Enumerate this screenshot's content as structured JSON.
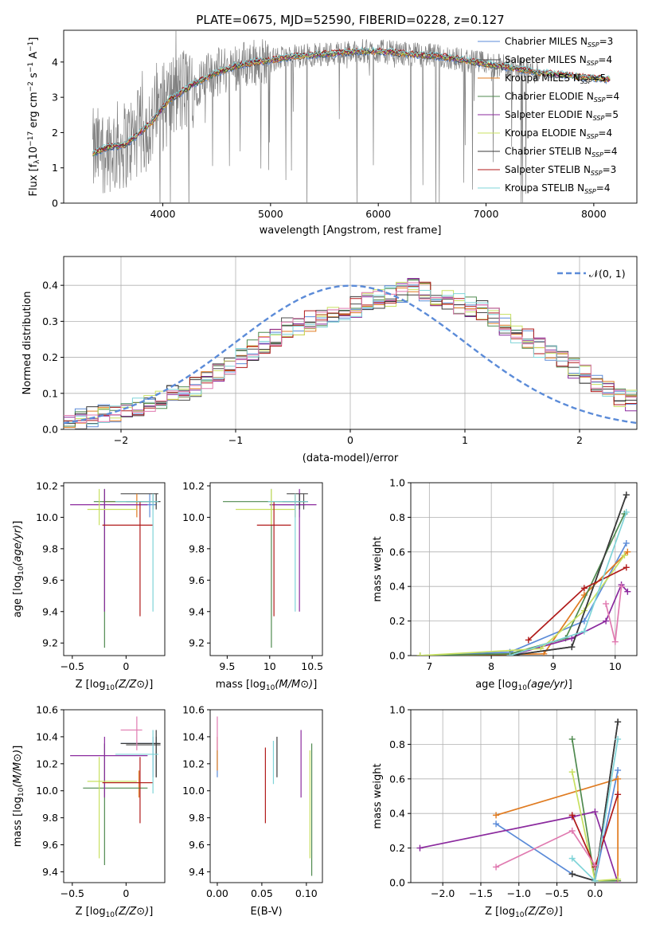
{
  "title": "PLATE=0675, MJD=52590, FIBERID=0228, z=0.127",
  "colors": {
    "Chabrier MILES": "#5b8bd8",
    "Salpeter MILES": "#4c4c4c",
    "Kroupa MILES": "#e07b20",
    "Chabrier ELODIE": "#4f8a4f",
    "Salpeter ELODIE": "#8b2a9e",
    "Kroupa ELODIE": "#c8e060",
    "Chabrier STELIB": "#3a3a3a",
    "Salpeter STELIB": "#b01a1a",
    "Kroupa STELIB": "#7fd4d8",
    "extra": "#e07ab0",
    "data": "#808080",
    "normal": "#5b8bd8"
  },
  "chart_data": [
    {
      "id": "spectrum",
      "type": "line",
      "xlabel": "wavelength [Angstrom, rest frame]",
      "ylabel": "Flux [f",
      "xlim": [
        3080,
        8400
      ],
      "ylim": [
        0,
        4.9
      ],
      "xticks": [
        4000,
        5000,
        6000,
        7000,
        8000
      ],
      "yticks": [
        0,
        1,
        2,
        3,
        4
      ],
      "legend": [
        {
          "name": "Chabrier MILES",
          "sub": "SSP",
          "n": "=3"
        },
        {
          "name": "Salpeter MILES",
          "sub": "SSP",
          "n": "=4"
        },
        {
          "name": "Kroupa MILES",
          "sub": "SSP",
          "n": "=5"
        },
        {
          "name": "Chabrier ELODIE",
          "sub": "SSP",
          "n": "=4"
        },
        {
          "name": "Salpeter ELODIE",
          "sub": "SSP",
          "n": "=5"
        },
        {
          "name": "Kroupa ELODIE",
          "sub": "SSP",
          "n": "=4"
        },
        {
          "name": "Chabrier STELIB",
          "sub": "SSP",
          "n": "=4"
        },
        {
          "name": "Salpeter STELIB",
          "sub": "SSP",
          "n": "=3"
        },
        {
          "name": "Kroupa STELIB",
          "sub": "SSP",
          "n": "=4"
        }
      ],
      "continuum": {
        "x": [
          3350,
          3500,
          3650,
          3750,
          3900,
          4050,
          4300,
          4500,
          4700,
          4850,
          5000,
          5200,
          5400,
          5600,
          5800,
          6000,
          6200,
          6400,
          6600,
          6800,
          7000,
          7200,
          7500
        ],
        "y": [
          1.4,
          1.6,
          1.65,
          1.9,
          2.3,
          2.9,
          3.4,
          3.7,
          3.9,
          4.0,
          4.05,
          4.15,
          4.2,
          4.25,
          4.3,
          4.3,
          4.25,
          4.2,
          4.15,
          4.05,
          3.95,
          3.85,
          3.7
        ]
      },
      "model_end": {
        "x": [
          7500,
          8150
        ],
        "y": [
          3.7,
          3.5
        ]
      }
    },
    {
      "id": "residuals",
      "type": "line",
      "xlabel": "(data-model)/error",
      "ylabel": "Normed distribution",
      "xlim": [
        -2.5,
        2.5
      ],
      "ylim": [
        0,
        0.48
      ],
      "xticks": [
        -2,
        -1,
        0,
        1,
        2
      ],
      "yticks": [
        0.0,
        0.1,
        0.2,
        0.3,
        0.4
      ],
      "legend": [
        {
          "name": "𝒩(0, 1)"
        }
      ],
      "bin_width": 0.1,
      "histogram_mean": [
        0.02,
        0.03,
        0.035,
        0.04,
        0.045,
        0.05,
        0.06,
        0.07,
        0.085,
        0.1,
        0.11,
        0.12,
        0.14,
        0.16,
        0.18,
        0.2,
        0.22,
        0.24,
        0.26,
        0.28,
        0.29,
        0.3,
        0.31,
        0.32,
        0.33,
        0.34,
        0.35,
        0.36,
        0.37,
        0.38,
        0.39,
        0.38,
        0.37,
        0.36,
        0.35,
        0.34,
        0.33,
        0.31,
        0.29,
        0.27,
        0.25,
        0.23,
        0.21,
        0.19,
        0.17,
        0.15,
        0.13,
        0.11,
        0.09,
        0.08
      ]
    },
    {
      "id": "age_vs_Z",
      "type": "scatter",
      "xlabel": "Z [log",
      "ylabel": "age  [log",
      "xlim": [
        -0.58,
        0.36
      ],
      "ylim": [
        9.12,
        10.22
      ],
      "xticks": [
        -0.5,
        0.0
      ],
      "yticks": [
        9.2,
        9.4,
        9.6,
        9.8,
        10.0,
        10.2
      ],
      "points": [
        {
          "c": "Chabrier MILES",
          "x": 0.22,
          "y": 10.08,
          "xl": [
            -0.15,
            0.28
          ],
          "yl": [
            10.0,
            10.15
          ]
        },
        {
          "c": "Salpeter MILES",
          "x": 0.25,
          "y": 10.15,
          "xl": [
            -0.05,
            0.3
          ],
          "yl": [
            10.05,
            10.15
          ]
        },
        {
          "c": "Kroupa MILES",
          "x": 0.1,
          "y": 10.1,
          "xl": [
            -0.22,
            0.2
          ],
          "yl": [
            10.0,
            10.15
          ]
        },
        {
          "c": "Chabrier ELODIE",
          "x": -0.2,
          "y": 10.1,
          "xl": [
            -0.3,
            0.15
          ],
          "yl": [
            9.17,
            10.18
          ]
        },
        {
          "c": "Salpeter ELODIE",
          "x": -0.2,
          "y": 10.08,
          "xl": [
            -0.52,
            0.2
          ],
          "yl": [
            9.4,
            10.18
          ]
        },
        {
          "c": "Kroupa ELODIE",
          "x": -0.25,
          "y": 10.05,
          "xl": [
            -0.36,
            0.1
          ],
          "yl": [
            9.95,
            10.18
          ]
        },
        {
          "c": "Chabrier STELIB",
          "x": 0.28,
          "y": 10.1,
          "xl": [
            0.0,
            0.32
          ],
          "yl": [
            10.05,
            10.15
          ]
        },
        {
          "c": "Salpeter STELIB",
          "x": 0.13,
          "y": 9.95,
          "xl": [
            -0.22,
            0.25
          ],
          "yl": [
            9.37,
            10.1
          ]
        },
        {
          "c": "Kroupa STELIB",
          "x": 0.25,
          "y": 10.1,
          "xl": [
            -0.1,
            0.3
          ],
          "yl": [
            9.4,
            10.15
          ]
        }
      ]
    },
    {
      "id": "age_vs_mass",
      "type": "scatter",
      "xlabel": "mass [log",
      "ylabel": "",
      "xlim": [
        9.3,
        10.62
      ],
      "ylim": [
        9.12,
        10.22
      ],
      "xticks": [
        9.5,
        10.0,
        10.5
      ],
      "yticks": [
        9.2,
        9.4,
        9.6,
        9.8,
        10.0,
        10.2
      ],
      "points": [
        {
          "c": "Chabrier MILES",
          "x": 10.35,
          "y": 10.08,
          "xl": [
            10.0,
            10.42
          ],
          "yl": [
            10.0,
            10.15
          ]
        },
        {
          "c": "Salpeter MILES",
          "x": 10.4,
          "y": 10.15,
          "xl": [
            10.2,
            10.45
          ],
          "yl": [
            10.05,
            10.15
          ]
        },
        {
          "c": "Kroupa MILES",
          "x": 10.3,
          "y": 10.1,
          "xl": [
            10.1,
            10.4
          ],
          "yl": [
            10.0,
            10.15
          ]
        },
        {
          "c": "Chabrier ELODIE",
          "x": 10.02,
          "y": 10.1,
          "xl": [
            9.45,
            10.35
          ],
          "yl": [
            9.17,
            10.18
          ]
        },
        {
          "c": "Salpeter ELODIE",
          "x": 10.35,
          "y": 10.08,
          "xl": [
            10.0,
            10.55
          ],
          "yl": [
            9.4,
            10.18
          ]
        },
        {
          "c": "Kroupa ELODIE",
          "x": 10.02,
          "y": 10.05,
          "xl": [
            9.6,
            10.3
          ],
          "yl": [
            9.95,
            10.18
          ]
        },
        {
          "c": "Chabrier STELIB",
          "x": 10.35,
          "y": 10.1,
          "xl": [
            10.15,
            10.45
          ],
          "yl": [
            10.05,
            10.15
          ]
        },
        {
          "c": "Salpeter STELIB",
          "x": 10.05,
          "y": 9.95,
          "xl": [
            9.85,
            10.25
          ],
          "yl": [
            9.37,
            10.1
          ]
        },
        {
          "c": "Kroupa STELIB",
          "x": 10.3,
          "y": 10.1,
          "xl": [
            9.98,
            10.45
          ],
          "yl": [
            9.4,
            10.15
          ]
        }
      ]
    },
    {
      "id": "weight_vs_age",
      "type": "line",
      "xlabel": "age  [log",
      "ylabel": "mass weight",
      "xlim": [
        6.7,
        10.35
      ],
      "ylim": [
        0,
        1.0
      ],
      "xticks": [
        7,
        8,
        9,
        10
      ],
      "yticks": [
        0.0,
        0.2,
        0.4,
        0.6,
        0.8,
        1.0
      ],
      "series": [
        {
          "c": "Chabrier MILES",
          "x": [
            6.85,
            8.3,
            9.5,
            10.18
          ],
          "y": [
            0.0,
            0.02,
            0.2,
            0.65
          ]
        },
        {
          "c": "Salpeter MILES",
          "x": [
            8.3,
            9.3,
            10.18
          ],
          "y": [
            0.0,
            0.05,
            0.93
          ]
        },
        {
          "c": "Kroupa MILES",
          "x": [
            6.85,
            8.85,
            9.5,
            10.2
          ],
          "y": [
            0.0,
            0.01,
            0.35,
            0.6
          ]
        },
        {
          "c": "Chabrier ELODIE",
          "x": [
            6.85,
            8.3,
            9.2,
            10.15
          ],
          "y": [
            0.0,
            0.01,
            0.1,
            0.82
          ]
        },
        {
          "c": "Salpeter ELODIE",
          "x": [
            8.3,
            9.3,
            9.85,
            10.1,
            10.2
          ],
          "y": [
            0.0,
            0.1,
            0.2,
            0.41,
            0.37
          ]
        },
        {
          "c": "Kroupa ELODIE",
          "x": [
            6.85,
            8.8,
            9.5,
            10.15
          ],
          "y": [
            0.0,
            0.04,
            0.26,
            0.58
          ]
        },
        {
          "c": "Chabrier STELIB",
          "x": [
            8.3,
            9.3,
            10.18
          ],
          "y": [
            0.0,
            0.05,
            0.93
          ]
        },
        {
          "c": "Salpeter STELIB",
          "x": [
            8.6,
            9.5,
            10.18
          ],
          "y": [
            0.09,
            0.39,
            0.51
          ]
        },
        {
          "c": "Kroupa STELIB",
          "x": [
            8.3,
            9.5,
            10.18
          ],
          "y": [
            0.0,
            0.14,
            0.83
          ]
        },
        {
          "c": "extra",
          "x": [
            9.85,
            10.0,
            10.1
          ],
          "y": [
            0.3,
            0.08,
            0.4
          ]
        }
      ]
    },
    {
      "id": "mass_vs_Z",
      "type": "scatter",
      "xlabel": "Z [log",
      "ylabel": "mass [log",
      "xlim": [
        -0.58,
        0.36
      ],
      "ylim": [
        9.32,
        10.6
      ],
      "xticks": [
        -0.5,
        0.0
      ],
      "yticks": [
        9.4,
        9.6,
        9.8,
        10.0,
        10.2,
        10.4,
        10.6
      ],
      "points": [
        {
          "c": "Chabrier MILES",
          "x": 0.25,
          "y": 10.35,
          "xl": [
            -0.05,
            0.3
          ],
          "yl": [
            10.1,
            10.4
          ]
        },
        {
          "c": "Salpeter MILES",
          "x": 0.28,
          "y": 10.34,
          "xl": [
            0.0,
            0.32
          ],
          "yl": [
            10.1,
            10.4
          ]
        },
        {
          "c": "Kroupa MILES",
          "x": 0.12,
          "y": 10.06,
          "xl": [
            -0.22,
            0.25
          ],
          "yl": [
            9.95,
            10.15
          ]
        },
        {
          "c": "Chabrier ELODIE",
          "x": -0.2,
          "y": 10.02,
          "xl": [
            -0.4,
            0.2
          ],
          "yl": [
            9.45,
            10.35
          ]
        },
        {
          "c": "Salpeter ELODIE",
          "x": -0.2,
          "y": 10.26,
          "xl": [
            -0.52,
            0.2
          ],
          "yl": [
            9.95,
            10.4
          ]
        },
        {
          "c": "Kroupa ELODIE",
          "x": -0.25,
          "y": 10.07,
          "xl": [
            -0.36,
            0.1
          ],
          "yl": [
            9.5,
            10.25
          ]
        },
        {
          "c": "Chabrier STELIB",
          "x": 0.28,
          "y": 10.35,
          "xl": [
            -0.05,
            0.32
          ],
          "yl": [
            10.1,
            10.45
          ]
        },
        {
          "c": "Salpeter STELIB",
          "x": 0.13,
          "y": 10.06,
          "xl": [
            -0.22,
            0.25
          ],
          "yl": [
            9.76,
            10.25
          ]
        },
        {
          "c": "Kroupa STELIB",
          "x": 0.25,
          "y": 10.27,
          "xl": [
            -0.1,
            0.3
          ],
          "yl": [
            9.98,
            10.45
          ]
        },
        {
          "c": "extra",
          "x": 0.1,
          "y": 10.45,
          "xl": [
            -0.05,
            0.15
          ],
          "yl": [
            10.3,
            10.55
          ]
        }
      ]
    },
    {
      "id": "mass_vs_ebv",
      "type": "scatter",
      "xlabel": "E(B-V)",
      "ylabel": "",
      "xlim": [
        -0.008,
        0.118
      ],
      "ylim": [
        9.32,
        10.6
      ],
      "xticks": [
        0.0,
        0.05,
        0.1
      ],
      "yticks": [
        9.4,
        9.6,
        9.8,
        10.0,
        10.2,
        10.4,
        10.6
      ],
      "points": [
        {
          "c": "Chabrier MILES",
          "x": 0.0,
          "y": 10.2,
          "xl": [
            0.0,
            0.0
          ],
          "yl": [
            10.1,
            10.3
          ]
        },
        {
          "c": "Kroupa MILES",
          "x": 0.0,
          "y": 10.3,
          "xl": [
            0.0,
            0.0
          ],
          "yl": [
            10.15,
            10.4
          ]
        },
        {
          "c": "extra",
          "x": 0.0,
          "y": 10.45,
          "xl": [
            0.0,
            0.0
          ],
          "yl": [
            10.3,
            10.55
          ]
        },
        {
          "c": "Salpeter STELIB",
          "x": 0.054,
          "y": 10.05,
          "xl": [
            0.054,
            0.054
          ],
          "yl": [
            9.76,
            10.32
          ]
        },
        {
          "c": "Kroupa STELIB",
          "x": 0.063,
          "y": 10.2,
          "xl": [
            0.063,
            0.063
          ],
          "yl": [
            10.05,
            10.37
          ]
        },
        {
          "c": "Chabrier STELIB",
          "x": 0.067,
          "y": 10.25,
          "xl": [
            0.067,
            0.067
          ],
          "yl": [
            10.1,
            10.4
          ]
        },
        {
          "c": "Salpeter ELODIE",
          "x": 0.094,
          "y": 10.2,
          "xl": [
            0.094,
            0.094
          ],
          "yl": [
            9.95,
            10.45
          ]
        },
        {
          "c": "Kroupa ELODIE",
          "x": 0.104,
          "y": 10.0,
          "xl": [
            0.104,
            0.104
          ],
          "yl": [
            9.5,
            10.3
          ]
        },
        {
          "c": "Chabrier ELODIE",
          "x": 0.106,
          "y": 9.9,
          "xl": [
            0.106,
            0.106
          ],
          "yl": [
            9.37,
            10.35
          ]
        }
      ]
    },
    {
      "id": "weight_vs_Z",
      "type": "line",
      "xlabel": "Z [log",
      "ylabel": "mass weight",
      "xlim": [
        -2.42,
        0.55
      ],
      "ylim": [
        0,
        1.0
      ],
      "xticks": [
        -2.0,
        -1.5,
        -1.0,
        -0.5,
        0.0
      ],
      "yticks": [
        0.0,
        0.2,
        0.4,
        0.6,
        0.8,
        1.0
      ],
      "series": [
        {
          "c": "Chabrier MILES",
          "x": [
            -1.3,
            -0.3,
            0.0,
            0.3
          ],
          "y": [
            0.34,
            0.05,
            0.01,
            0.65
          ]
        },
        {
          "c": "Salpeter MILES",
          "x": [
            -0.3,
            0.0,
            0.3
          ],
          "y": [
            0.05,
            0.01,
            0.93
          ]
        },
        {
          "c": "Kroupa MILES",
          "x": [
            -1.3,
            0.3,
            0.3
          ],
          "y": [
            0.39,
            0.6,
            0.01
          ]
        },
        {
          "c": "Chabrier ELODIE",
          "x": [
            -0.3,
            0.0,
            0.3
          ],
          "y": [
            0.83,
            0.01,
            0.01
          ]
        },
        {
          "c": "Salpeter ELODIE",
          "x": [
            -2.3,
            -0.3,
            0.0,
            0.3
          ],
          "y": [
            0.2,
            0.38,
            0.41,
            0.0
          ]
        },
        {
          "c": "Kroupa ELODIE",
          "x": [
            -0.3,
            0.0,
            0.3
          ],
          "y": [
            0.64,
            0.01,
            0.02
          ]
        },
        {
          "c": "Chabrier STELIB",
          "x": [
            -0.3,
            0.0,
            0.3
          ],
          "y": [
            0.05,
            0.01,
            0.93
          ]
        },
        {
          "c": "Salpeter STELIB",
          "x": [
            -0.3,
            0.0,
            0.3
          ],
          "y": [
            0.39,
            0.09,
            0.51
          ]
        },
        {
          "c": "Kroupa STELIB",
          "x": [
            -0.3,
            0.0,
            0.3
          ],
          "y": [
            0.14,
            0.01,
            0.83
          ]
        },
        {
          "c": "extra",
          "x": [
            -1.3,
            -0.3,
            0.0
          ],
          "y": [
            0.09,
            0.3,
            0.1
          ]
        }
      ]
    }
  ]
}
